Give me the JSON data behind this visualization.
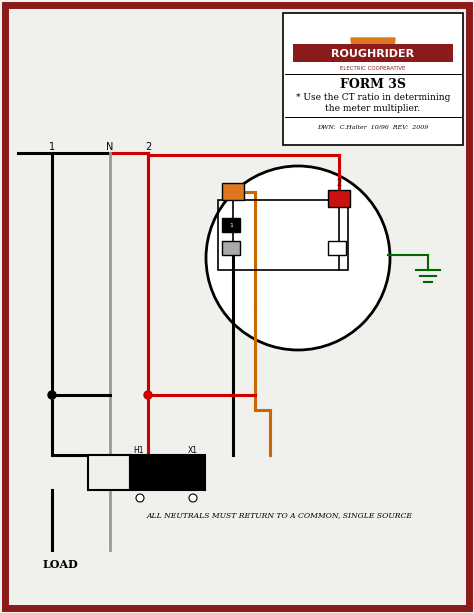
{
  "bg_color": "#f0f0ec",
  "border_color": "#8b1a1a",
  "logo_text": "ROUGHRIDER",
  "logo_sub": "ELECTRIC COOPERATIVE",
  "title_text": "FORM 3S",
  "subtitle1": "* Use the CT ratio in determining",
  "subtitle2": "the meter multiplier.",
  "drwn_text": "DWN:  C.Halter  10/96  REV:  2009",
  "bottom_note": "ALL NEUTRALS MUST RETURN TO A COMMON, SINGLE SOURCE",
  "load_label": "LOAD",
  "label_1": "1",
  "label_2": "2",
  "label_N": "N",
  "label_H1": "H1",
  "label_X1": "X1",
  "red_wire": "#cc0000",
  "orange_wire": "#cc6600",
  "green_wire": "#006600",
  "black_wire": "#111111",
  "gray_wire": "#999999",
  "orange_terminal": "#dd7722",
  "red_terminal": "#cc1111",
  "border": "#8b1a1a",
  "logo_banner": "#8b1a1a",
  "sun_color": "#e07820",
  "gray_box": "#aaaaaa"
}
